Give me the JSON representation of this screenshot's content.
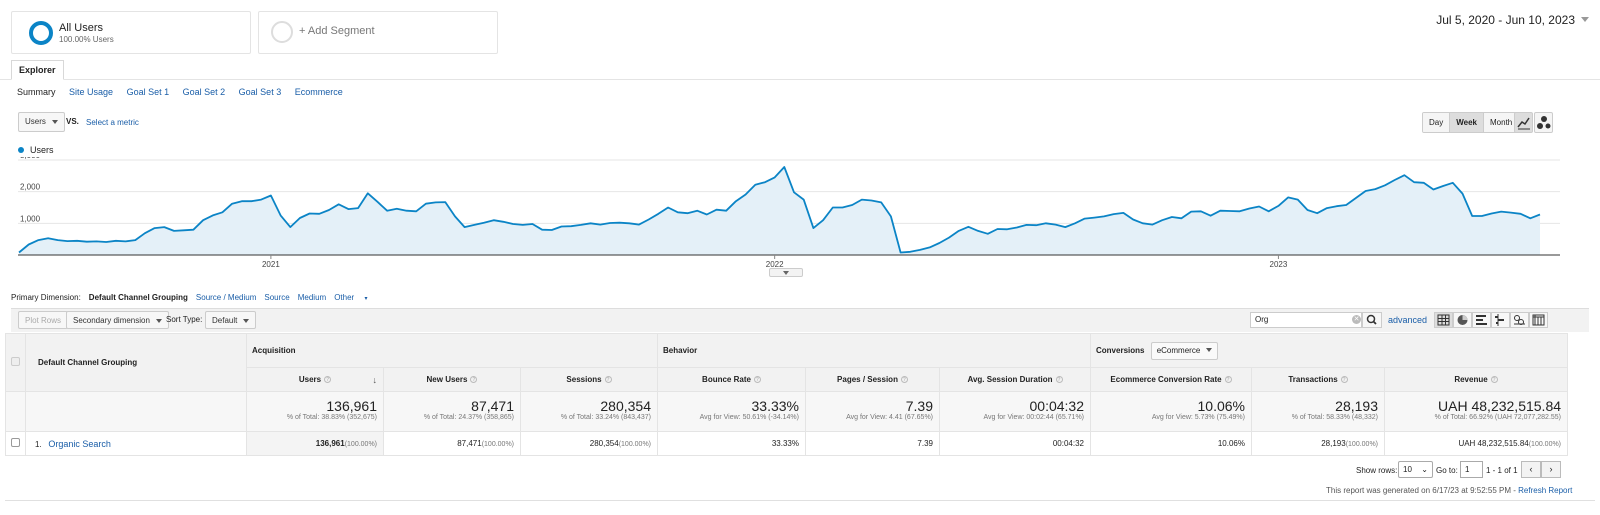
{
  "segments": {
    "active": {
      "name": "All Users",
      "sub": "100.00% Users"
    },
    "add_label": "+ Add Segment"
  },
  "date_range": "Jul 5, 2020 - Jun 10, 2023",
  "explorer_tab": "Explorer",
  "subtabs": [
    "Summary",
    "Site Usage",
    "Goal Set 1",
    "Goal Set 2",
    "Goal Set 3",
    "Ecommerce"
  ],
  "metric": {
    "selected": "Users",
    "vs": "VS.",
    "select_metric": "Select a metric"
  },
  "granularity": {
    "day": "Day",
    "week": "Week",
    "month": "Month",
    "selected": "Week"
  },
  "colors": {
    "accent": "#0b84c6",
    "link": "#1a5ea8",
    "area_fill": "#e4f0f8"
  },
  "chart_data": {
    "type": "area",
    "legend": "Users",
    "ylim": [
      0,
      3000
    ],
    "yticks": [
      "1,000",
      "2,000",
      "3,000"
    ],
    "xtick_labels": [
      "2021",
      "2022",
      "2023"
    ],
    "series": [
      {
        "name": "Users",
        "values": [
          80,
          330,
          470,
          530,
          470,
          440,
          450,
          420,
          430,
          410,
          450,
          430,
          470,
          690,
          850,
          880,
          760,
          780,
          800,
          1100,
          1250,
          1350,
          1620,
          1700,
          1700,
          1750,
          1880,
          1250,
          880,
          1170,
          1310,
          1300,
          1420,
          1600,
          1450,
          1480,
          1950,
          1680,
          1400,
          1460,
          1400,
          1380,
          1620,
          1660,
          1670,
          1220,
          880,
          950,
          1020,
          1100,
          1050,
          980,
          950,
          980,
          800,
          790,
          900,
          910,
          950,
          1000,
          960,
          1010,
          1020,
          1000,
          960,
          1120,
          1300,
          1500,
          1350,
          1320,
          1400,
          1280,
          1430,
          1400,
          1700,
          1910,
          2220,
          2300,
          2450,
          2780,
          1980,
          1750,
          850,
          1100,
          1500,
          1500,
          1580,
          1750,
          1720,
          1660,
          1220,
          80,
          100,
          160,
          240,
          380,
          550,
          760,
          890,
          760,
          670,
          820,
          810,
          870,
          950,
          940,
          1000,
          960,
          880,
          1000,
          1150,
          1180,
          1220,
          1290,
          1330,
          1120,
          1000,
          960,
          1100,
          1200,
          1160,
          1370,
          1380,
          1240,
          1400,
          1390,
          1380,
          1470,
          1530,
          1380,
          1550,
          1820,
          1750,
          1420,
          1320,
          1480,
          1540,
          1580,
          1800,
          2020,
          2080,
          2200,
          2370,
          2520,
          2300,
          2280,
          2070,
          2180,
          2280,
          1940,
          1230,
          1230,
          1310,
          1370,
          1340,
          1300,
          1160,
          1280
        ]
      }
    ]
  },
  "primary_dimension": {
    "label": "Primary Dimension:",
    "current": "Default Channel Grouping",
    "options": [
      "Source / Medium",
      "Source",
      "Medium",
      "Other"
    ]
  },
  "toolbar": {
    "plot_rows": "Plot Rows",
    "secondary_dimension": "Secondary dimension",
    "sort_type_label": "Sort Type:",
    "sort_type_value": "Default",
    "search_value": "Org",
    "advanced": "advanced"
  },
  "table": {
    "dimension_header": "Default Channel Grouping",
    "groups": {
      "acquisition": "Acquisition",
      "behavior": "Behavior",
      "conversions": "Conversions",
      "conversion_select": "eCommerce"
    },
    "columns": [
      "Users",
      "New Users",
      "Sessions",
      "Bounce Rate",
      "Pages / Session",
      "Avg. Session Duration",
      "Ecommerce Conversion Rate",
      "Transactions",
      "Revenue"
    ],
    "totals": [
      {
        "value": "136,961",
        "note": "% of Total: 38.83% (352,675)"
      },
      {
        "value": "87,471",
        "note": "% of Total: 24.37% (358,865)"
      },
      {
        "value": "280,354",
        "note": "% of Total: 33.24% (843,437)"
      },
      {
        "value": "33.33%",
        "note": "Avg for View: 50.61% (-34.14%)"
      },
      {
        "value": "7.39",
        "note": "Avg for View: 4.41 (67.65%)"
      },
      {
        "value": "00:04:32",
        "note": "Avg for View: 00:02:44 (65.71%)"
      },
      {
        "value": "10.06%",
        "note": "Avg for View: 5.73% (75.49%)"
      },
      {
        "value": "28,193",
        "note": "% of Total: 58.33% (48,332)"
      },
      {
        "value": "UAH 48,232,515.84",
        "note": "% of Total: 66.92% (UAH 72,077,282.55)"
      }
    ],
    "rows": [
      {
        "index": "1.",
        "name": "Organic Search",
        "users": "136,961",
        "users_pct": "(100.00%)",
        "new_users": "87,471",
        "new_users_pct": "(100.00%)",
        "sessions": "280,354",
        "sessions_pct": "(100.00%)",
        "bounce_rate": "33.33%",
        "pages_session": "7.39",
        "avg_duration": "00:04:32",
        "conv_rate": "10.06%",
        "transactions": "28,193",
        "transactions_pct": "(100.00%)",
        "revenue": "UAH 48,232,515.84",
        "revenue_pct": "(100.00%)"
      }
    ]
  },
  "footer": {
    "show_rows_label": "Show rows:",
    "show_rows_value": "10",
    "goto_label": "Go to:",
    "goto_value": "1",
    "page_info": "1 - 1 of 1",
    "report_generated": "This report was generated on 6/17/23 at 9:52:55 PM - ",
    "refresh": "Refresh Report"
  }
}
